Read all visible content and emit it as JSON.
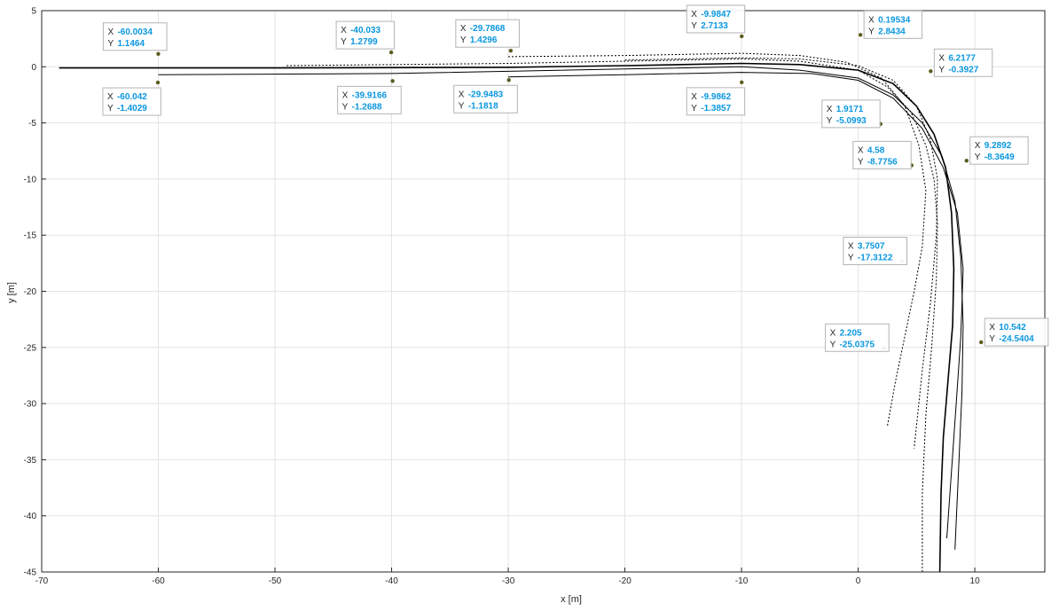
{
  "chart_data": {
    "type": "line",
    "xlabel": "x [m]",
    "ylabel": "y [m]",
    "xlim": [
      -70,
      16
    ],
    "ylim": [
      -45,
      5
    ],
    "xticks": [
      -70,
      -60,
      -50,
      -40,
      -30,
      -20,
      -10,
      0,
      10
    ],
    "yticks": [
      5,
      0,
      -5,
      -10,
      -15,
      -20,
      -25,
      -30,
      -35,
      -40,
      -45
    ],
    "grid": true,
    "series": [
      {
        "x": [
          -68.5,
          -50,
          -30,
          -20,
          -10,
          -5,
          0,
          3,
          5,
          6.5,
          7.5,
          8,
          8.2,
          8.1,
          7.7,
          7.3,
          7.1,
          7.0
        ],
        "y": [
          -0.1,
          -0.1,
          -0.05,
          0.1,
          0.3,
          0.2,
          -0.3,
          -1.5,
          -3.5,
          -6,
          -9,
          -13,
          -18,
          -23,
          -28,
          -33,
          -38,
          -45
        ]
      },
      {
        "x": [
          -49,
          -30,
          -20,
          -10,
          -5,
          0,
          2.5,
          4.5,
          5.8,
          6.5,
          6.8,
          6.7,
          6.3,
          5.8,
          5.5,
          5.5
        ],
        "y": [
          0.1,
          0.3,
          0.5,
          0.7,
          0.5,
          -0.3,
          -1.8,
          -4,
          -7,
          -10,
          -14,
          -19,
          -25,
          -31,
          -38,
          -45
        ]
      },
      {
        "x": [
          -60,
          -40,
          -30,
          -20,
          -10,
          -5,
          0,
          3,
          5.5,
          7.2,
          8.3,
          8.8,
          9.0,
          8.9,
          8.6,
          8.3
        ],
        "y": [
          -0.7,
          -0.6,
          -0.4,
          -0.2,
          0.0,
          -0.3,
          -1.0,
          -2.5,
          -5,
          -8,
          -12,
          -17,
          -23,
          -29,
          -36,
          -43
        ]
      },
      {
        "x": [
          -30,
          -20,
          -10,
          -5,
          -1,
          2,
          4,
          5.2,
          5.8,
          5.5,
          4.8,
          4.0,
          3.2,
          2.5
        ],
        "y": [
          0.9,
          1.0,
          1.2,
          1.0,
          0.4,
          -1.0,
          -3.5,
          -7,
          -11,
          -16,
          -20,
          -24,
          -28,
          -32
        ]
      },
      {
        "x": [
          -30,
          -20,
          -10,
          -4,
          0,
          3,
          5.5,
          7.3,
          8.5,
          9.0,
          8.8,
          8.4,
          8.0,
          7.6
        ],
        "y": [
          -0.9,
          -0.7,
          -0.5,
          -0.6,
          -1.2,
          -2.8,
          -5.5,
          -9,
          -13,
          -18,
          -24,
          -30,
          -36,
          -42
        ]
      },
      {
        "x": [
          -20,
          -10,
          -5,
          0,
          3,
          5,
          6.2,
          6.8,
          6.7,
          6.2,
          5.5,
          4.8
        ],
        "y": [
          0.6,
          0.8,
          0.7,
          0.1,
          -1.2,
          -3.5,
          -6.5,
          -10,
          -15,
          -21,
          -27,
          -34
        ]
      }
    ],
    "annotations": [
      {
        "x": -60.0034,
        "y": 1.1464,
        "text_x": "-60.0034",
        "text_y": "1.1464"
      },
      {
        "x": -60.042,
        "y": -1.4029,
        "text_x": "-60.042",
        "text_y": "-1.4029"
      },
      {
        "x": -40.033,
        "y": 1.2799,
        "text_x": "-40.033",
        "text_y": "1.2799"
      },
      {
        "x": -39.9166,
        "y": -1.2688,
        "text_x": "-39.9166",
        "text_y": "-1.2688"
      },
      {
        "x": -29.7868,
        "y": 1.4296,
        "text_x": "-29.7868",
        "text_y": "1.4296"
      },
      {
        "x": -29.9483,
        "y": -1.1818,
        "text_x": "-29.9483",
        "text_y": "-1.1818"
      },
      {
        "x": -9.9847,
        "y": 2.7133,
        "text_x": "-9.9847",
        "text_y": "2.7133"
      },
      {
        "x": -9.9862,
        "y": -1.3857,
        "text_x": "-9.9862",
        "text_y": "-1.3857"
      },
      {
        "x": 0.19534,
        "y": 2.8434,
        "text_x": "0.19534",
        "text_y": "2.8434"
      },
      {
        "x": 6.2177,
        "y": -0.3927,
        "text_x": "6.2177",
        "text_y": "-0.3927"
      },
      {
        "x": 1.9171,
        "y": -5.0993,
        "text_x": "1.9171",
        "text_y": "-5.0993"
      },
      {
        "x": 9.2892,
        "y": -8.3649,
        "text_x": "9.2892",
        "text_y": "-8.3649"
      },
      {
        "x": 4.58,
        "y": -8.7756,
        "text_x": "4.58",
        "text_y": "-8.7756"
      },
      {
        "x": 3.7507,
        "y": -17.3122,
        "text_x": "3.7507",
        "text_y": "-17.3122"
      },
      {
        "x": 10.542,
        "y": -24.5404,
        "text_x": "10.542",
        "text_y": "-24.5404"
      },
      {
        "x": 2.205,
        "y": -25.0375,
        "text_x": "2.205",
        "text_y": "-25.0375"
      }
    ],
    "datatip_labels": {
      "x_key": "X",
      "y_key": "Y"
    },
    "colors": {
      "line": "#000000",
      "grid": "#e3e3e3",
      "axis": "#262626",
      "datatip_value": "#0a97e0",
      "datatip_border": "#b4b4b4",
      "marker": "#5b5b1f"
    }
  }
}
